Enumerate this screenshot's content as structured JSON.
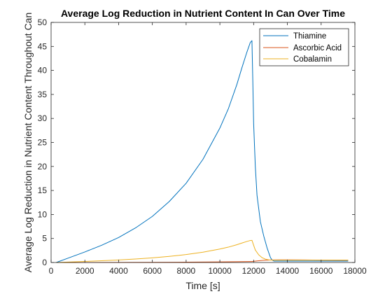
{
  "chart_data": {
    "type": "line",
    "title": "Average Log Reduction in Nutrient Content In Can Over Time",
    "xlabel": "Time [s]",
    "ylabel": "Average Log Reduction in Nutrient Content Throughout Can",
    "xlim": [
      0,
      18000
    ],
    "ylim": [
      0,
      50
    ],
    "xticks": [
      0,
      2000,
      4000,
      6000,
      8000,
      10000,
      12000,
      14000,
      16000,
      18000
    ],
    "yticks": [
      0,
      5,
      10,
      15,
      20,
      25,
      30,
      35,
      40,
      45,
      50
    ],
    "grid": false,
    "legend": "top-right",
    "series": [
      {
        "name": "Thiamine",
        "color": "#0072BD",
        "x": [
          300,
          1000,
          2000,
          3000,
          4000,
          5000,
          6000,
          7000,
          8000,
          9000,
          10000,
          10500,
          11000,
          11300,
          11600,
          11800,
          11900,
          11950,
          12000,
          12100,
          12200,
          12400,
          12600,
          12800,
          13000,
          13100,
          13200,
          13500,
          14000,
          15000,
          16000,
          17000,
          17600
        ],
        "values": [
          0.0,
          0.9,
          2.2,
          3.6,
          5.2,
          7.2,
          9.6,
          12.7,
          16.5,
          21.5,
          28.0,
          32.0,
          37.0,
          40.5,
          43.8,
          45.8,
          46.2,
          38.0,
          29.0,
          20.0,
          14.0,
          8.5,
          5.5,
          3.0,
          1.0,
          0.5,
          0.3,
          0.3,
          0.3,
          0.3,
          0.3,
          0.3,
          0.3
        ]
      },
      {
        "name": "Ascorbic Acid",
        "color": "#D95319",
        "x": [
          300,
          2000,
          4000,
          6000,
          8000,
          10000,
          11000,
          11800,
          11900,
          12200,
          12600,
          13000,
          13500,
          14000,
          15000,
          16000,
          17000,
          17600
        ],
        "values": [
          0.0,
          0.0,
          0.02,
          0.04,
          0.07,
          0.12,
          0.16,
          0.2,
          0.2,
          0.32,
          0.45,
          0.52,
          0.55,
          0.55,
          0.53,
          0.5,
          0.48,
          0.47
        ]
      },
      {
        "name": "Cobalamin",
        "color": "#EDB120",
        "x": [
          300,
          1000,
          2000,
          3000,
          4000,
          5000,
          6000,
          7000,
          8000,
          9000,
          10000,
          10500,
          11000,
          11300,
          11600,
          11800,
          11900,
          12000,
          12100,
          12300,
          12500,
          12700,
          12900,
          13100,
          13500,
          14000,
          15000,
          16000,
          17000,
          17600
        ],
        "values": [
          0.0,
          0.09,
          0.22,
          0.36,
          0.52,
          0.72,
          0.96,
          1.27,
          1.65,
          2.15,
          2.8,
          3.2,
          3.7,
          4.05,
          4.38,
          4.58,
          4.62,
          3.6,
          2.6,
          1.6,
          1.0,
          0.7,
          0.55,
          0.5,
          0.5,
          0.5,
          0.5,
          0.5,
          0.5,
          0.5
        ]
      }
    ]
  }
}
